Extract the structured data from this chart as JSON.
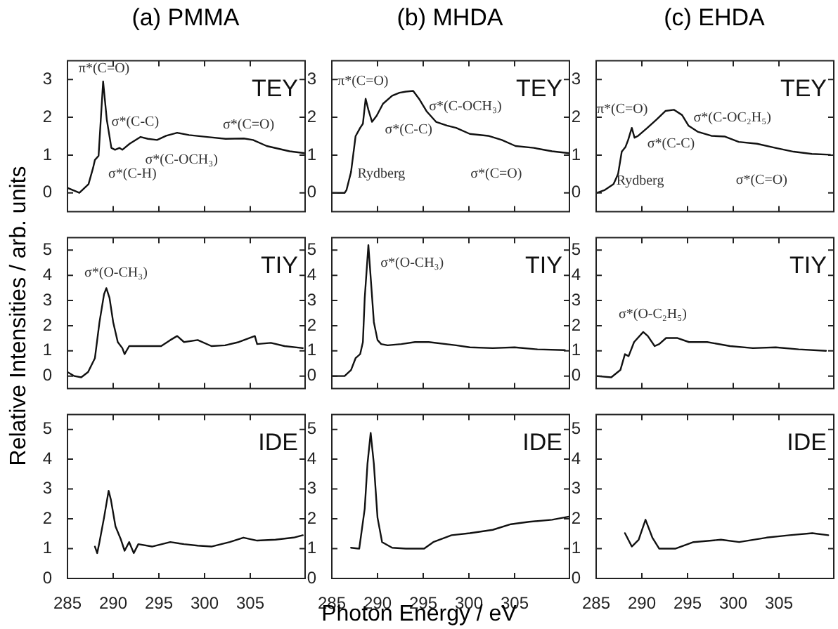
{
  "chart_data": [
    {
      "type": "line",
      "title": "(a) PMMA",
      "color": "#111111",
      "xlim": [
        285,
        311
      ],
      "xticks": [
        285,
        290,
        295,
        300,
        305
      ],
      "ylim": [
        -0.5,
        3.5
      ],
      "yticks": [
        0,
        1,
        2,
        3
      ],
      "tick_labels": "y",
      "x": [
        285,
        286.3,
        287.3,
        287.8,
        288,
        288.4,
        288.9,
        289.3,
        289.8,
        290.2,
        290.7,
        291,
        291.8,
        293,
        293.8,
        294.8,
        295.8,
        297,
        298.3,
        300.3,
        302.3,
        304.3,
        305.3,
        306.8,
        309.3,
        311
      ],
      "values": [
        0.13,
        0,
        0.23,
        0.66,
        0.87,
        0.98,
        2.95,
        1.94,
        1.19,
        1.14,
        1.19,
        1.14,
        1.3,
        1.48,
        1.43,
        1.4,
        1.51,
        1.59,
        1.53,
        1.48,
        1.43,
        1.44,
        1.4,
        1.24,
        1.1,
        1.05
      ],
      "annotations": [
        "TEY",
        "π*(C=O)",
        "σ*(C-C)",
        "σ*(C-H)",
        "σ*(C-OCH₃)",
        "σ*(C=O)"
      ]
    },
    {
      "type": "line",
      "title": "(b) MHDA",
      "color": "#111111",
      "xlim": [
        285,
        311
      ],
      "xticks": [
        285,
        290,
        295,
        300,
        305
      ],
      "ylim": [
        -0.5,
        3.5
      ],
      "yticks": [
        0,
        1,
        2,
        3
      ],
      "tick_labels": "y",
      "x": [
        285,
        286.4,
        286.6,
        287.1,
        287.6,
        288.1,
        288.4,
        288.7,
        289,
        289.4,
        289.9,
        290.6,
        291.6,
        292.4,
        293.1,
        293.9,
        294.6,
        295.4,
        296.4,
        297.6,
        298.6,
        300.1,
        302.1,
        303.6,
        305.1,
        307.1,
        309.1,
        311
      ],
      "values": [
        0,
        0,
        0.07,
        0.55,
        1.5,
        1.72,
        1.83,
        2.49,
        2.2,
        1.88,
        2.04,
        2.36,
        2.57,
        2.65,
        2.68,
        2.7,
        2.47,
        2.15,
        1.88,
        1.78,
        1.72,
        1.56,
        1.51,
        1.4,
        1.24,
        1.19,
        1.1,
        1.05
      ],
      "annotations": [
        "TEY",
        "π*(C=O)",
        "Rydberg",
        "σ*(C-C)",
        "σ*(C-OCH₃)",
        "σ*(C=O)"
      ]
    },
    {
      "type": "line",
      "title": "(c) EHDA",
      "color": "#111111",
      "xlim": [
        285,
        311
      ],
      "xticks": [
        285,
        290,
        295,
        300,
        305
      ],
      "ylim": [
        -0.5,
        3.5
      ],
      "yticks": [
        0,
        1,
        2,
        3
      ],
      "tick_labels": "y",
      "x": [
        285.1,
        285.9,
        286.9,
        287.4,
        287.8,
        288.2,
        288.5,
        288.9,
        289.2,
        289.6,
        290.6,
        291.6,
        292.6,
        293.5,
        294.4,
        295.1,
        296.1,
        297.6,
        299.1,
        300.6,
        302.6,
        304.6,
        306.6,
        308.6,
        310.6
      ],
      "values": [
        0,
        0.07,
        0.23,
        0.5,
        1.09,
        1.21,
        1.4,
        1.72,
        1.46,
        1.51,
        1.72,
        1.94,
        2.17,
        2.2,
        2.06,
        1.78,
        1.62,
        1.51,
        1.49,
        1.35,
        1.3,
        1.19,
        1.09,
        1.03,
        1.01
      ],
      "annotations": [
        "TEY",
        "π*(C=O)",
        "Rydberg",
        "σ*(C-C)",
        "σ*(C-OC₂H₅)",
        "σ*(C=O)"
      ]
    },
    {
      "type": "line",
      "ylabel": "Relative Intensities  / arb. units",
      "color": "#111111",
      "xlim": [
        285,
        311
      ],
      "xticks": [
        285,
        290,
        295,
        300,
        305
      ],
      "ylim": [
        -0.5,
        5.5
      ],
      "yticks": [
        0,
        1,
        2,
        3,
        4,
        5
      ],
      "tick_labels": "y",
      "x": [
        285,
        285.75,
        286.5,
        287.25,
        288,
        288.5,
        289,
        289.25,
        289.6,
        290,
        290.5,
        291,
        291.25,
        291.75,
        292.75,
        294.25,
        295.25,
        296.25,
        297,
        297.75,
        299.25,
        300.75,
        302.25,
        303.75,
        305.5,
        305.75,
        307.25,
        308.75,
        310.75
      ],
      "values": [
        0.16,
        0,
        -0.05,
        0.16,
        0.71,
        2.14,
        3.25,
        3.49,
        3.1,
        2.14,
        1.35,
        1.11,
        0.87,
        1.19,
        1.19,
        1.19,
        1.19,
        1.43,
        1.59,
        1.35,
        1.43,
        1.19,
        1.22,
        1.35,
        1.59,
        1.27,
        1.32,
        1.19,
        1.11
      ],
      "annotations": [
        "TIY",
        "σ*(O-CH₃)"
      ]
    },
    {
      "type": "line",
      "color": "#111111",
      "xlim": [
        285,
        311
      ],
      "xticks": [
        285,
        290,
        295,
        300,
        305
      ],
      "ylim": [
        -0.5,
        5.5
      ],
      "yticks": [
        0,
        1,
        2,
        3,
        4,
        5
      ],
      "tick_labels": "y",
      "x": [
        285,
        286.4,
        287.1,
        287.6,
        288.1,
        288.4,
        288.6,
        289,
        289.6,
        290,
        290.4,
        291.1,
        292.6,
        294.1,
        295.6,
        298.6,
        300.1,
        302.6,
        305,
        307.5,
        310.5
      ],
      "values": [
        0,
        0,
        0.24,
        0.71,
        0.87,
        1.35,
        3.1,
        5.2,
        2.14,
        1.43,
        1.27,
        1.22,
        1.27,
        1.35,
        1.35,
        1.22,
        1.14,
        1.11,
        1.14,
        1.06,
        1.03
      ],
      "annotations": [
        "TIY",
        "σ*(O-CH₃)"
      ]
    },
    {
      "type": "line",
      "color": "#111111",
      "xlim": [
        285,
        311
      ],
      "xticks": [
        285,
        290,
        295,
        300,
        305
      ],
      "ylim": [
        -0.5,
        5.5
      ],
      "yticks": [
        0,
        1,
        2,
        3,
        4,
        5
      ],
      "tick_labels": "y",
      "x": [
        285,
        286.65,
        287.65,
        288.15,
        288.55,
        289.15,
        290.15,
        290.65,
        291.4,
        291.9,
        292.65,
        293.9,
        295.15,
        297.15,
        299.65,
        302.15,
        304.65,
        307.15,
        310.15
      ],
      "values": [
        0,
        -0.05,
        0.24,
        0.87,
        0.79,
        1.35,
        1.75,
        1.59,
        1.19,
        1.27,
        1.51,
        1.51,
        1.35,
        1.35,
        1.19,
        1.11,
        1.14,
        1.06,
        1
      ],
      "annotations": [
        "TIY",
        "σ*(O-C₂H₅)"
      ]
    },
    {
      "type": "line",
      "color": "#111111",
      "xlim": [
        285,
        311
      ],
      "xticks": [
        285,
        290,
        295,
        300,
        305
      ],
      "ylim": [
        0,
        5.5
      ],
      "yticks": [
        0,
        1,
        2,
        3,
        4,
        5
      ],
      "x": [
        288,
        288.25,
        288.5,
        289,
        289.5,
        289.75,
        290.25,
        290.85,
        291.25,
        291.75,
        292.25,
        292.75,
        294.25,
        296.25,
        297.75,
        299.25,
        300.75,
        302.75,
        304.25,
        305.75,
        307.75,
        309.75,
        310.75
      ],
      "values": [
        1.07,
        0.85,
        1.22,
        2.04,
        2.94,
        2.64,
        1.75,
        1.3,
        0.93,
        1.22,
        0.85,
        1.15,
        1.07,
        1.22,
        1.15,
        1.1,
        1.07,
        1.22,
        1.37,
        1.27,
        1.3,
        1.37,
        1.45
      ],
      "annotations": [
        "IDE"
      ]
    },
    {
      "type": "line",
      "xlabel": "Photon Energy  / eV",
      "color": "#111111",
      "xlim": [
        285,
        311
      ],
      "xticks": [
        285,
        290,
        295,
        300,
        305
      ],
      "ylim": [
        0,
        5.5
      ],
      "yticks": [
        0,
        1,
        2,
        3,
        4,
        5
      ],
      "x": [
        287.1,
        288,
        288.6,
        288.9,
        289.25,
        289.6,
        290,
        290.5,
        291.6,
        293.1,
        295.1,
        296.1,
        298.1,
        300.1,
        302.6,
        304.6,
        306.6,
        309.1,
        310.85
      ],
      "values": [
        1.03,
        1,
        2.34,
        3.84,
        4.88,
        3.84,
        2.04,
        1.22,
        1.03,
        1,
        1,
        1.22,
        1.45,
        1.52,
        1.63,
        1.82,
        1.9,
        1.97,
        2.07
      ],
      "annotations": [
        "IDE"
      ]
    },
    {
      "type": "line",
      "color": "#111111",
      "xlim": [
        285,
        311
      ],
      "xticks": [
        285,
        290,
        295,
        300,
        305
      ],
      "ylim": [
        0,
        5.5
      ],
      "yticks": [
        0,
        1,
        2,
        3,
        4,
        5
      ],
      "x": [
        288.15,
        288.9,
        289.65,
        290.4,
        291.15,
        291.9,
        293.65,
        295.65,
        298.65,
        300.65,
        303.65,
        306.15,
        308.65,
        310.4
      ],
      "values": [
        1.52,
        1.07,
        1.3,
        1.97,
        1.37,
        1,
        1,
        1.22,
        1.3,
        1.22,
        1.37,
        1.45,
        1.52,
        1.45
      ],
      "annotations": [
        "IDE"
      ]
    }
  ]
}
